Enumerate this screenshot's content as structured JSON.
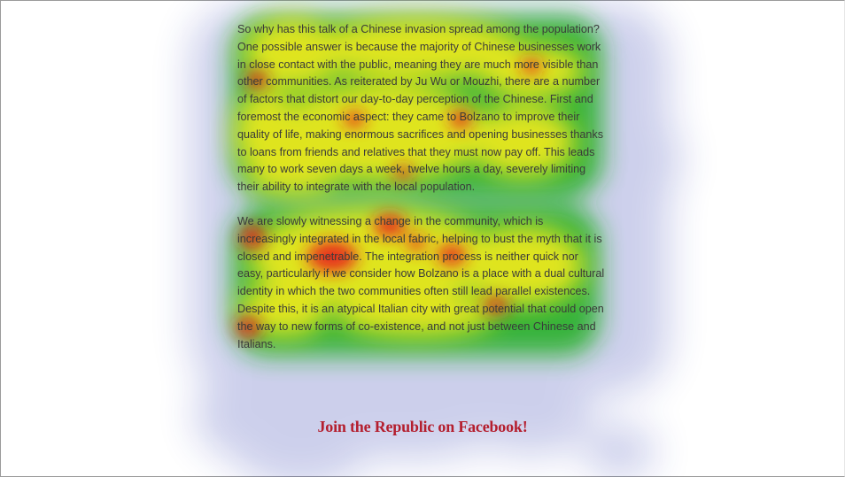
{
  "article": {
    "paragraphs": [
      "So why has this talk of a Chinese invasion spread among the population? One possible answer is because the majority of Chinese businesses work in close contact with the public, meaning they are much more visible than other communities. As reiterated by Ju Wu or Mouzhi, there are a number of factors that distort our day-to-day perception of the Chinese. First and foremost the economic aspect: they came to Bolzano to improve their quality of life, making enormous sacrifices and opening businesses thanks to loans from friends and relatives that they must now pay off. This leads many to work seven days a week, twelve hours a day, severely limiting their ability to integrate with the local population.",
      "We are slowly witnessing a change in the community, which is increasingly integrated in the local fabric, helping to bust the myth that it is closed and impenetrable. The integration process is neither quick nor easy, particularly if we consider how Bolzano is a place with a dual cultural identity in which the two communities often still lead parallel existences. Despite this, it is an atypical Italian city with great potential that could open the way to new forms of co-existence, and not just between Chinese and Italians."
    ]
  },
  "cta": {
    "label": "Join the Republic on Facebook!"
  },
  "heatmap": {
    "colors": {
      "low": "#1e2aa8",
      "mid": "#1fae1f",
      "high": "#f2ea1a",
      "peak": "#e81f1f"
    }
  }
}
